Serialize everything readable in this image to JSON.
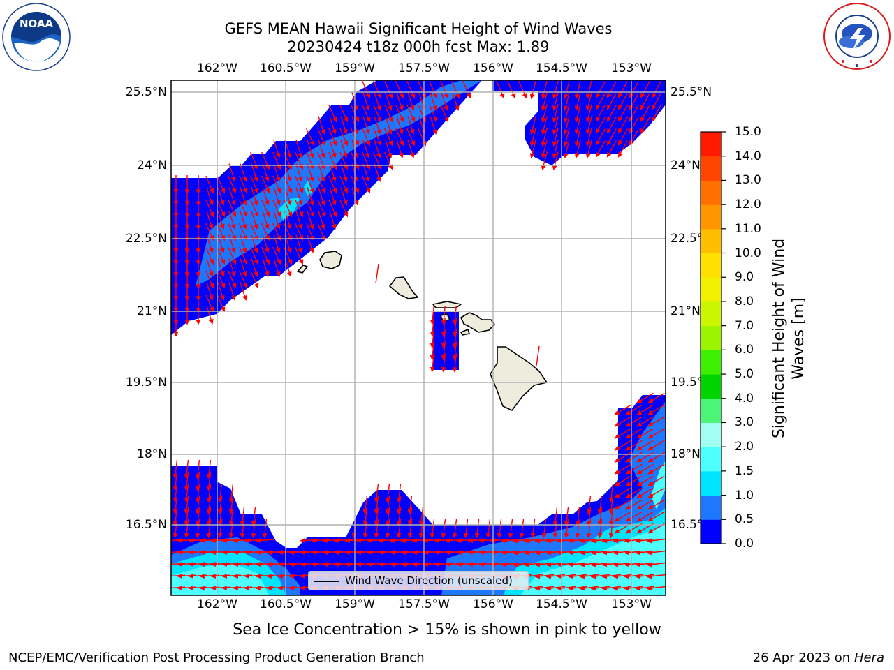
{
  "title": {
    "line1": "GEFS MEAN Hawaii Significant Height of Wind Waves",
    "line2": "20230424 t18z 000h fcst   Max: 1.89"
  },
  "axes": {
    "lon_labels": [
      "162°W",
      "160.5°W",
      "159°W",
      "157.5°W",
      "156°W",
      "154.5°W",
      "153°W"
    ],
    "lat_labels": [
      "25.5°N",
      "24°N",
      "22.5°N",
      "21°N",
      "19.5°N",
      "18°N",
      "16.5°N"
    ],
    "lon_range": [
      -163.0,
      -152.8
    ],
    "lat_range": [
      15.0,
      25.7
    ],
    "grid": true
  },
  "colorbar": {
    "label_line1": "Significant Height of Wind",
    "label_line2": "Waves [m]",
    "ticks": [
      "0.0",
      "0.5",
      "1.0",
      "1.5",
      "2.0",
      "3.0",
      "4.0",
      "5.0",
      "6.0",
      "7.0",
      "8.0",
      "9.0",
      "10.0",
      "11.0",
      "12.0",
      "13.0",
      "14.0",
      "15.0"
    ],
    "colors": [
      "#0000ff",
      "#1e78ff",
      "#00e5ff",
      "#4dffff",
      "#a0fff0",
      "#4cf577",
      "#00d400",
      "#3cf000",
      "#9cf500",
      "#ccf500",
      "#f0f000",
      "#ffe000",
      "#ffbe00",
      "#ff9600",
      "#ff7000",
      "#ff4500",
      "#ff1a00"
    ]
  },
  "legend": {
    "label": "Wind Wave Direction (unscaled)"
  },
  "note": "Sea Ice Concentration > 15% is shown in pink to yellow",
  "footer": {
    "left": "NCEP/EMC/Verification Post Processing Product Generation Branch",
    "right_date": "26 Apr 2023 on",
    "right_machine": "Hera"
  },
  "logos": {
    "noaa": "NOAA",
    "noaa_ring": "NATIONAL OCEANIC AND ATMOSPHERIC ADMINISTRATION · U.S. DEPARTMENT OF COMMERCE",
    "nws_ring": "NATIONAL WEATHER SERVICE"
  },
  "colors": {
    "arrows": "#ff0000",
    "land": "#eeecdc",
    "grid": "#b0b0b0"
  }
}
